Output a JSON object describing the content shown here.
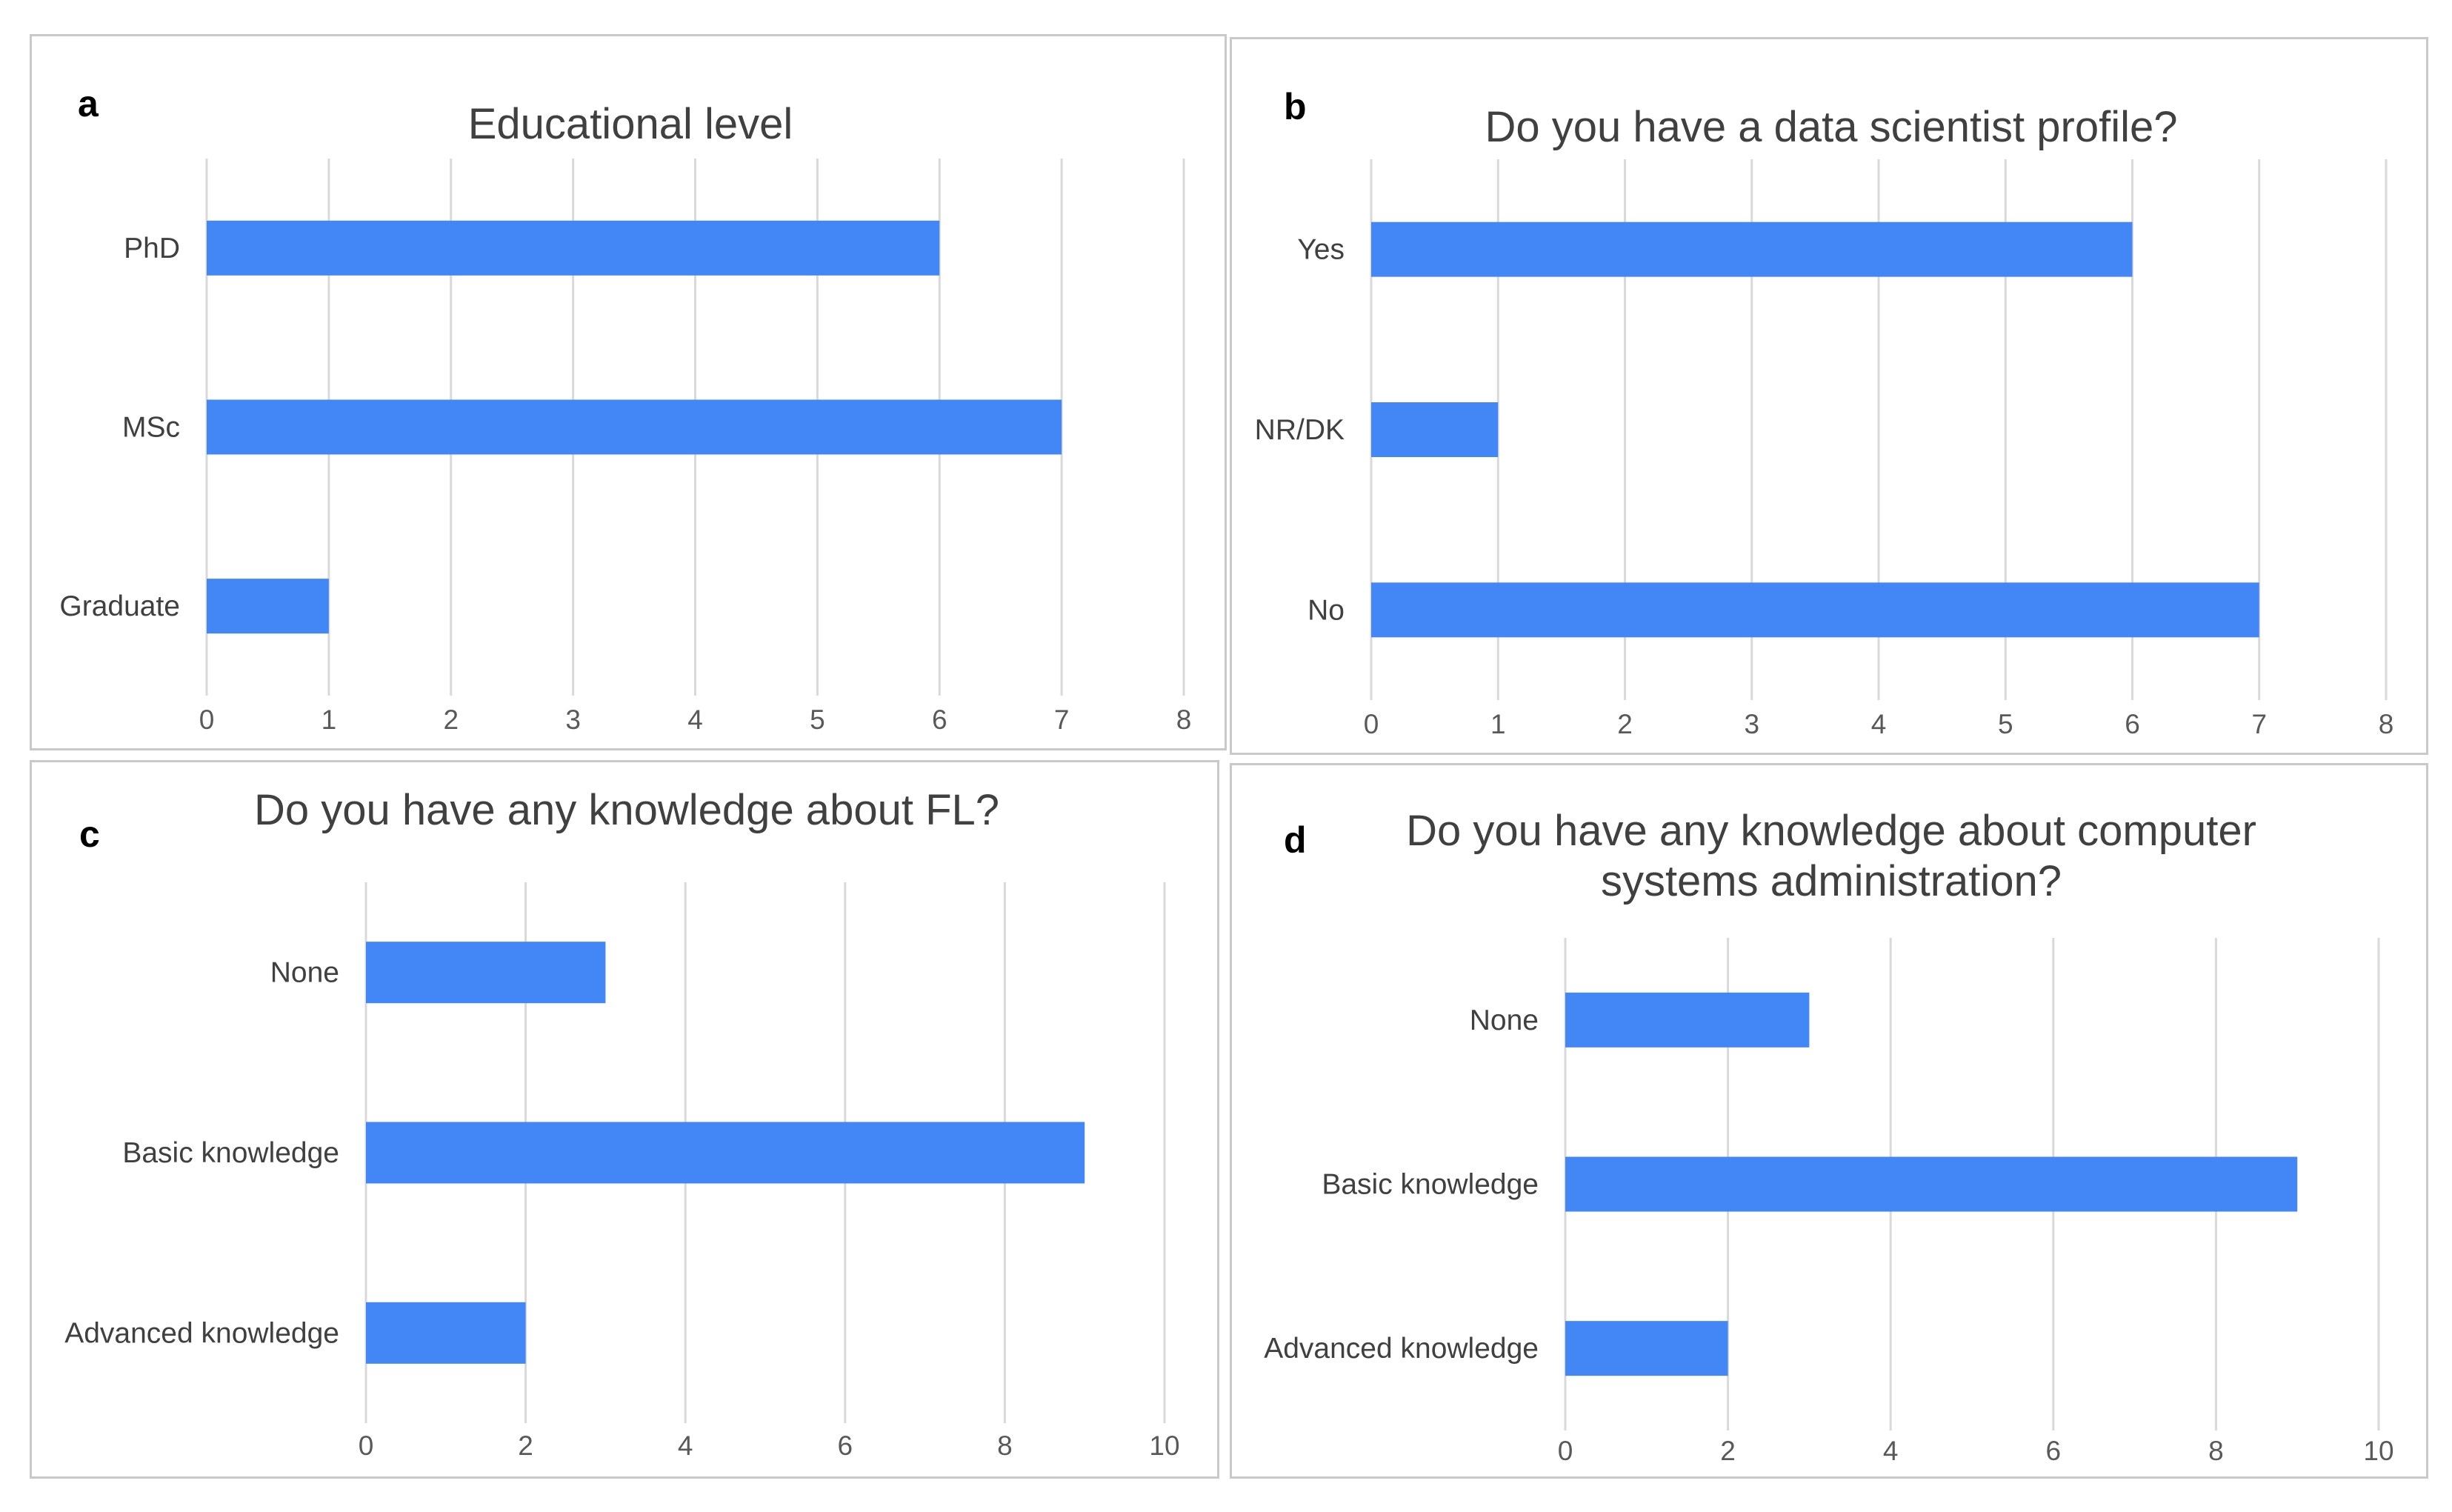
{
  "colors": {
    "bar": "#4287f5",
    "grid": "#d9d9d9",
    "text": "#404040",
    "border": "#c9c9c9"
  },
  "chart_data": [
    {
      "panel": "a",
      "type": "bar",
      "orientation": "horizontal",
      "title": "Educational level",
      "title_lines": [
        "Educational level"
      ],
      "categories": [
        "PhD",
        "MSc",
        "Graduate"
      ],
      "values": [
        6,
        7,
        1
      ],
      "xlim": [
        0,
        8
      ],
      "xticks": [
        0,
        1,
        2,
        3,
        4,
        5,
        6,
        7,
        8
      ],
      "xlabel": "",
      "ylabel": "",
      "grid": true,
      "legend": "none"
    },
    {
      "panel": "b",
      "type": "bar",
      "orientation": "horizontal",
      "title": "Do you have a data scientist profile?",
      "title_lines": [
        "Do you have a data scientist profile?"
      ],
      "categories": [
        "Yes",
        "NR/DK",
        "No"
      ],
      "values": [
        6,
        1,
        7
      ],
      "xlim": [
        0,
        8
      ],
      "xticks": [
        0,
        1,
        2,
        3,
        4,
        5,
        6,
        7,
        8
      ],
      "xlabel": "",
      "ylabel": "",
      "grid": true,
      "legend": "none"
    },
    {
      "panel": "c",
      "type": "bar",
      "orientation": "horizontal",
      "title": "Do you have any knowledge about FL?",
      "title_lines": [
        "Do you have any knowledge about FL?"
      ],
      "categories": [
        "None",
        "Basic knowledge",
        "Advanced knowledge"
      ],
      "values": [
        3,
        9,
        2
      ],
      "xlim": [
        0,
        10
      ],
      "xticks": [
        0,
        2,
        4,
        6,
        8,
        10
      ],
      "xlabel": "",
      "ylabel": "",
      "grid": true,
      "legend": "none"
    },
    {
      "panel": "d",
      "type": "bar",
      "orientation": "horizontal",
      "title": "Do you have any knowledge about computer systems administration?",
      "title_lines": [
        "Do you have any knowledge about computer",
        "systems administration?"
      ],
      "categories": [
        "None",
        "Basic knowledge",
        "Advanced knowledge"
      ],
      "values": [
        3,
        9,
        2
      ],
      "xlim": [
        0,
        10
      ],
      "xticks": [
        0,
        2,
        4,
        6,
        8,
        10
      ],
      "xlabel": "",
      "ylabel": "",
      "grid": true,
      "legend": "none"
    }
  ]
}
